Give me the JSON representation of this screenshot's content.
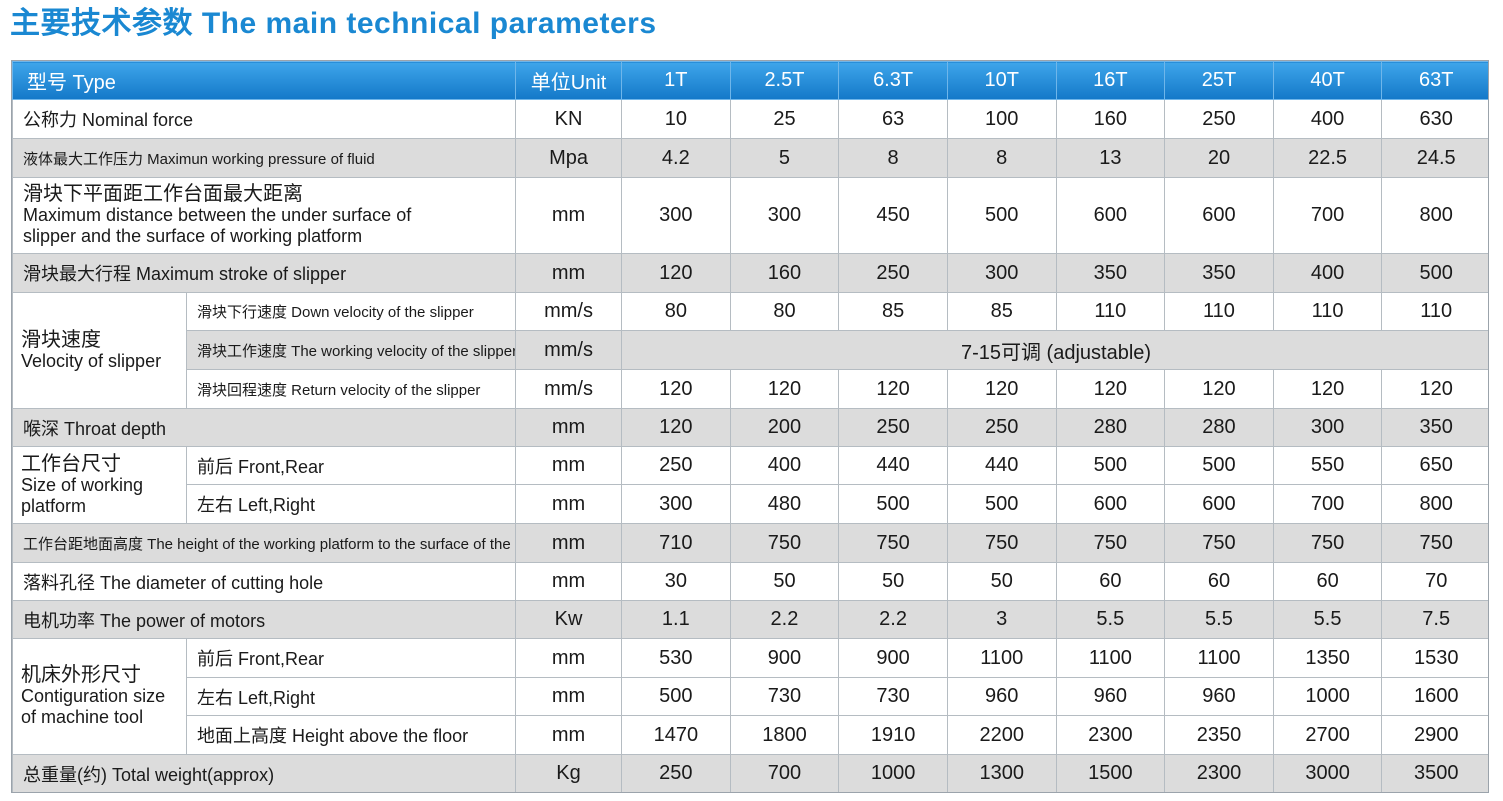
{
  "title": "主要技术参数 The main technical parameters",
  "header": {
    "type_label": "型号 Type",
    "unit_label": "单位Unit",
    "models": [
      "1T",
      "2.5T",
      "6.3T",
      "10T",
      "16T",
      "25T",
      "40T",
      "63T"
    ]
  },
  "rows": {
    "nominal_force": {
      "label": "公称力 Nominal force",
      "unit": "KN",
      "values": [
        "10",
        "25",
        "63",
        "100",
        "160",
        "250",
        "400",
        "630"
      ]
    },
    "max_pressure": {
      "label": "液体最大工作压力 Maximun working pressure of fluid",
      "unit": "Mpa",
      "values": [
        "4.2",
        "5",
        "8",
        "8",
        "13",
        "20",
        "22.5",
        "24.5"
      ]
    },
    "max_distance": {
      "label_cn": "滑块下平面距工作台面最大距离",
      "label_en1": "Maximum distance between the under surface of",
      "label_en2": "slipper and the surface of working platform",
      "unit": "mm",
      "values": [
        "300",
        "300",
        "450",
        "500",
        "600",
        "600",
        "700",
        "800"
      ]
    },
    "max_stroke": {
      "label": "滑块最大行程 Maximum stroke of slipper",
      "unit": "mm",
      "values": [
        "120",
        "160",
        "250",
        "300",
        "350",
        "350",
        "400",
        "500"
      ]
    },
    "velocity": {
      "group_cn": "滑块速度",
      "group_en": "Velocity of slipper",
      "down": {
        "label": "滑块下行速度 Down velocity of the slipper",
        "unit": "mm/s",
        "values": [
          "80",
          "80",
          "85",
          "85",
          "110",
          "110",
          "110",
          "110"
        ]
      },
      "working": {
        "label": "滑块工作速度 The working velocity of the slipper",
        "unit": "mm/s",
        "value": "7-15可调 (adjustable)"
      },
      "return": {
        "label": "滑块回程速度 Return velocity of the slipper",
        "unit": "mm/s",
        "values": [
          "120",
          "120",
          "120",
          "120",
          "120",
          "120",
          "120",
          "120"
        ]
      }
    },
    "throat_depth": {
      "label": "喉深 Throat depth",
      "unit": "mm",
      "values": [
        "120",
        "200",
        "250",
        "250",
        "280",
        "280",
        "300",
        "350"
      ]
    },
    "platform_size": {
      "group_cn": "工作台尺寸",
      "group_en1": "Size of working",
      "group_en2": "platform",
      "front_rear": {
        "label": "前后 Front,Rear",
        "unit": "mm",
        "values": [
          "250",
          "400",
          "440",
          "440",
          "500",
          "500",
          "550",
          "650"
        ]
      },
      "left_right": {
        "label": "左右 Left,Right",
        "unit": "mm",
        "values": [
          "300",
          "480",
          "500",
          "500",
          "600",
          "600",
          "700",
          "800"
        ]
      }
    },
    "platform_height": {
      "label": "工作台距地面高度 The height of the working platform to the surface of the floor",
      "unit": "mm",
      "values": [
        "710",
        "750",
        "750",
        "750",
        "750",
        "750",
        "750",
        "750"
      ]
    },
    "cutting_hole": {
      "label": "落料孔径 The diameter of cutting hole",
      "unit": "mm",
      "values": [
        "30",
        "50",
        "50",
        "50",
        "60",
        "60",
        "60",
        "70"
      ]
    },
    "motor_power": {
      "label": "电机功率 The power of motors",
      "unit": "Kw",
      "values": [
        "1.1",
        "2.2",
        "2.2",
        "3",
        "5.5",
        "5.5",
        "5.5",
        "7.5"
      ]
    },
    "machine_size": {
      "group_cn": "机床外形尺寸",
      "group_en1": "Contiguration size",
      "group_en2": "of machine tool",
      "front_rear": {
        "label": "前后 Front,Rear",
        "unit": "mm",
        "values": [
          "530",
          "900",
          "900",
          "1100",
          "1100",
          "1100",
          "1350",
          "1530"
        ]
      },
      "left_right": {
        "label": "左右 Left,Right",
        "unit": "mm",
        "values": [
          "500",
          "730",
          "730",
          "960",
          "960",
          "960",
          "1000",
          "1600"
        ]
      },
      "height": {
        "label": "地面上高度 Height above the floor",
        "unit": "mm",
        "values": [
          "1470",
          "1800",
          "1910",
          "2200",
          "2300",
          "2350",
          "2700",
          "2900"
        ]
      }
    },
    "total_weight": {
      "label": "总重量(约) Total weight(approx)",
      "unit": "Kg",
      "values": [
        "250",
        "700",
        "1000",
        "1300",
        "1500",
        "2300",
        "3000",
        "3500"
      ]
    }
  },
  "colors": {
    "title_blue": "#1a88d2",
    "header_blue": "#1e84d4",
    "gray_row": "#dcdcdc",
    "border": "#b5bcc2"
  }
}
